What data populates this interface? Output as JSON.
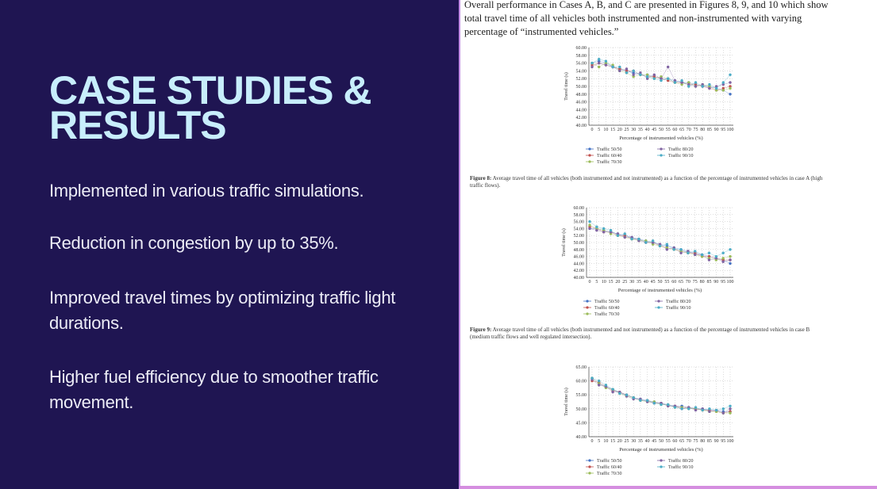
{
  "slide": {
    "title": "CASE STUDIES & RESULTS",
    "bullets": [
      "Implemented in various traffic simulations.",
      "Reduction in congestion by up to 35%.",
      "Improved travel times by optimizing traffic light durations.",
      "Higher fuel efficiency due to smoother traffic movement."
    ]
  },
  "paper": {
    "intro": "Overall performance in Cases A, B, and C are presented in Figures 8, 9, and 10 which show total travel time of all vehicles both instrumented and non-instrumented with varying percentage of “instrumented vehicles.”"
  },
  "chart_data": [
    {
      "type": "scatter",
      "caption_label": "Figure 8:",
      "caption": "Average travel time of all vehicles (both instrumented and not instrumented) as a function of the percentage of instrumented vehicles in case A (high traffic flows).",
      "x_label": "Percentage of instrumented vehicles (%)",
      "y_label": "Travel time (s)",
      "grid": true,
      "x": [
        0,
        5,
        10,
        15,
        20,
        25,
        30,
        35,
        40,
        45,
        50,
        55,
        60,
        65,
        70,
        75,
        80,
        85,
        90,
        95,
        100
      ],
      "xlim": [
        0,
        100
      ],
      "xticks": [
        0,
        5,
        10,
        15,
        20,
        25,
        30,
        35,
        40,
        45,
        50,
        55,
        60,
        65,
        70,
        75,
        80,
        85,
        90,
        95,
        100
      ],
      "ylim": [
        40,
        60
      ],
      "yticks": [
        {
          "value": 40,
          "label": "40.00"
        },
        {
          "value": 42,
          "label": "42.00"
        },
        {
          "value": 44,
          "label": "44.00"
        },
        {
          "value": 46,
          "label": "46.00"
        },
        {
          "value": 48,
          "label": "48.00"
        },
        {
          "value": 50,
          "label": "50.00"
        },
        {
          "value": 52,
          "label": "52.00"
        },
        {
          "value": 54,
          "label": "54.00"
        },
        {
          "value": 56,
          "label": "56.00"
        },
        {
          "value": 58,
          "label": "58.00"
        },
        {
          "value": 60,
          "label": "60.00"
        }
      ],
      "series": [
        {
          "name": "Traffic 50/50",
          "color": "#4472c4",
          "values": [
            56,
            56.5,
            56,
            55,
            54.5,
            54,
            53.5,
            53,
            53,
            52.5,
            52,
            52,
            51.5,
            51,
            51,
            50.5,
            50,
            50,
            49.5,
            49,
            48
          ]
        },
        {
          "name": "Traffic 60/40",
          "color": "#c0504d",
          "values": [
            55.5,
            56,
            55.5,
            55,
            54.5,
            54,
            54,
            53,
            52.5,
            52.5,
            52,
            51.5,
            51,
            51,
            50.5,
            50.5,
            50,
            49.5,
            49,
            49.5,
            50
          ]
        },
        {
          "name": "Traffic 70/30",
          "color": "#9bbb59",
          "values": [
            56,
            55,
            56,
            55.5,
            54,
            53.5,
            52.5,
            53,
            53,
            52,
            52.5,
            52,
            51,
            50.5,
            51,
            50,
            50.5,
            50,
            49,
            49,
            49.5
          ]
        },
        {
          "name": "Traffic 80/20",
          "color": "#8064a2",
          "values": [
            55,
            56,
            55.5,
            55,
            54,
            54.5,
            53,
            53.5,
            52,
            53,
            52,
            55,
            51.5,
            51,
            50.5,
            50,
            50.5,
            49.5,
            50,
            50.5,
            51
          ]
        },
        {
          "name": "Traffic 90/10",
          "color": "#4bacc6",
          "values": [
            56,
            57,
            56.5,
            55,
            55,
            53.5,
            54,
            53,
            52.5,
            52,
            51.5,
            52,
            51,
            51.5,
            50,
            51,
            50,
            50.5,
            49.5,
            51,
            53
          ]
        }
      ]
    },
    {
      "type": "scatter",
      "caption_label": "Figure 9:",
      "caption": "Average travel time of all vehicles (both instrumented and not instrumented) as a function of the percentage of instrumented vehicles in case B (medium traffic flows and well regulated intersection).",
      "x_label": "Percentage of instrumented vehicles (%)",
      "y_label": "Travel time (s)",
      "grid": true,
      "x": [
        0,
        5,
        10,
        15,
        20,
        25,
        30,
        35,
        40,
        45,
        50,
        55,
        60,
        65,
        70,
        75,
        80,
        85,
        90,
        95,
        100
      ],
      "xlim": [
        0,
        100
      ],
      "xticks": [
        0,
        5,
        10,
        15,
        20,
        25,
        30,
        35,
        40,
        45,
        50,
        55,
        60,
        65,
        70,
        75,
        80,
        85,
        90,
        95,
        100
      ],
      "ylim": [
        40,
        60
      ],
      "yticks": [
        {
          "value": 40,
          "label": "40.00"
        },
        {
          "value": 42,
          "label": "42.00"
        },
        {
          "value": 44,
          "label": "44.00"
        },
        {
          "value": 46,
          "label": "46.00"
        },
        {
          "value": 48,
          "label": "48.00"
        },
        {
          "value": 50,
          "label": "50.00"
        },
        {
          "value": 52,
          "label": "52.00"
        },
        {
          "value": 54,
          "label": "54.00"
        },
        {
          "value": 56,
          "label": "56.00"
        },
        {
          "value": 58,
          "label": "58.00"
        },
        {
          "value": 60,
          "label": "60.00"
        }
      ],
      "series": [
        {
          "name": "Traffic 50/50",
          "color": "#4472c4",
          "values": [
            54,
            54,
            53.5,
            53,
            52.5,
            52,
            51.5,
            51,
            50.5,
            50,
            49.5,
            49,
            48.5,
            48,
            47.5,
            47,
            46.5,
            46,
            45.5,
            45,
            44
          ]
        },
        {
          "name": "Traffic 60/40",
          "color": "#c0504d",
          "values": [
            54.5,
            54,
            53,
            53,
            52,
            52,
            51,
            51,
            50,
            50,
            49,
            48.5,
            48,
            47.5,
            47,
            47,
            46,
            46,
            45.5,
            45,
            45
          ]
        },
        {
          "name": "Traffic 70/30",
          "color": "#9bbb59",
          "values": [
            55,
            54,
            53.5,
            52.5,
            52,
            51.5,
            51,
            50.5,
            50.5,
            49.5,
            49,
            48.5,
            48,
            47.5,
            47,
            46.5,
            46,
            45.5,
            45,
            45.5,
            46
          ]
        },
        {
          "name": "Traffic 80/20",
          "color": "#8064a2",
          "values": [
            54,
            53.5,
            53,
            53,
            52.5,
            51.5,
            51.5,
            50.5,
            50,
            50,
            49.5,
            48,
            48.5,
            47,
            47.5,
            46.5,
            46.5,
            45,
            45.5,
            44.5,
            45
          ]
        },
        {
          "name": "Traffic 90/10",
          "color": "#4bacc6",
          "values": [
            56,
            54.5,
            54,
            53.5,
            52,
            52.5,
            51,
            51,
            50,
            50.5,
            49,
            49.5,
            48,
            48,
            47,
            47.5,
            46.5,
            47,
            46,
            47,
            48
          ]
        }
      ]
    },
    {
      "type": "scatter",
      "x_label": "Percentage of instrumented vehicles (%)",
      "y_label": "Travel time (s)",
      "grid": true,
      "x": [
        0,
        5,
        10,
        15,
        20,
        25,
        30,
        35,
        40,
        45,
        50,
        55,
        60,
        65,
        70,
        75,
        80,
        85,
        90,
        95,
        100
      ],
      "xlim": [
        0,
        100
      ],
      "xticks": [
        0,
        5,
        10,
        15,
        20,
        25,
        30,
        35,
        40,
        45,
        50,
        55,
        60,
        65,
        70,
        75,
        80,
        85,
        90,
        95,
        100
      ],
      "ylim": [
        40,
        65
      ],
      "yticks": [
        {
          "value": 40,
          "label": "40.00"
        },
        {
          "value": 45,
          "label": "45.00"
        },
        {
          "value": 50,
          "label": "50.00"
        },
        {
          "value": 55,
          "label": "55.00"
        },
        {
          "value": 60,
          "label": "60.00"
        },
        {
          "value": 65,
          "label": "65.00"
        }
      ],
      "series": [
        {
          "name": "Traffic 50/50",
          "color": "#4472c4",
          "values": [
            61,
            59,
            58,
            57,
            56,
            55,
            54,
            53.5,
            53,
            52.5,
            52,
            51.5,
            51,
            51,
            50.5,
            50,
            50,
            49.5,
            49.5,
            49,
            49
          ]
        },
        {
          "name": "Traffic 60/40",
          "color": "#c0504d",
          "values": [
            60,
            59.5,
            58,
            56.5,
            56,
            55,
            54,
            53,
            53,
            52,
            52,
            51,
            51,
            50.5,
            50.5,
            50,
            49.5,
            49.5,
            49,
            48.5,
            49
          ]
        },
        {
          "name": "Traffic 70/30",
          "color": "#9bbb59",
          "values": [
            61,
            59,
            57.5,
            57,
            55.5,
            54.5,
            54,
            53,
            52.5,
            52.5,
            51.5,
            51.5,
            50.5,
            50.5,
            50,
            50,
            49.5,
            49,
            49,
            48.5,
            48.5
          ]
        },
        {
          "name": "Traffic 80/20",
          "color": "#8064a2",
          "values": [
            60.5,
            58.5,
            58,
            56,
            56,
            54.5,
            53.5,
            53.5,
            52.5,
            52,
            52,
            51,
            51,
            50,
            50.5,
            49.5,
            50,
            49,
            49.5,
            48.5,
            50
          ]
        },
        {
          "name": "Traffic 90/10",
          "color": "#4bacc6",
          "values": [
            61,
            60,
            58.5,
            57,
            55.5,
            55,
            54,
            53,
            53,
            52,
            51.5,
            51.5,
            50.5,
            50,
            50,
            50.5,
            49.5,
            50,
            49.5,
            50,
            51
          ]
        }
      ]
    }
  ]
}
